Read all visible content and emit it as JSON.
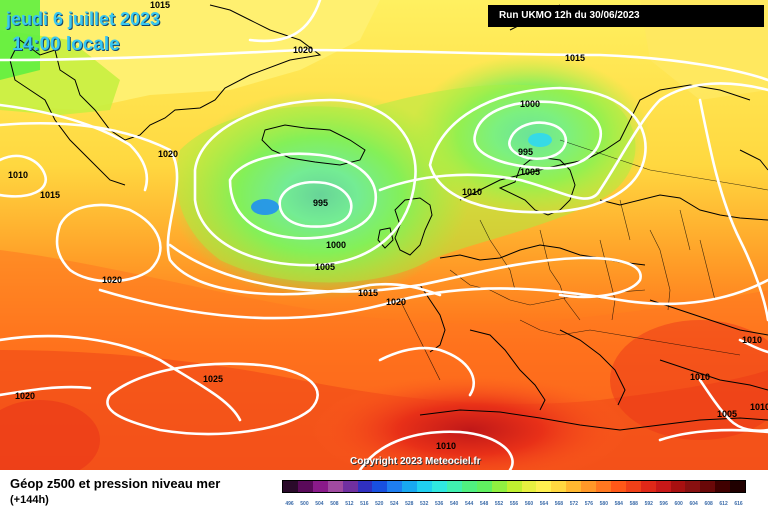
{
  "header": {
    "date_line": "jeudi 6 juillet 2023",
    "time_line": "14:00 locale",
    "run_info": "Run UKMO 12h du 30/06/2023",
    "copyright": "Copyright 2023 Meteociel.fr"
  },
  "legend": {
    "title": "Géop z500 et pression niveau mer",
    "subtitle": "(+144h)",
    "scale_values": [
      "496",
      "500",
      "504",
      "508",
      "512",
      "516",
      "520",
      "524",
      "528",
      "532",
      "536",
      "540",
      "544",
      "548",
      "552",
      "556",
      "560",
      "564",
      "568",
      "572",
      "576",
      "580",
      "584",
      "588",
      "592",
      "596",
      "600",
      "604",
      "608",
      "612",
      "616"
    ],
    "scale_colors": [
      "#2a0a2a",
      "#5a0a5a",
      "#8a1a8a",
      "#a04aa0",
      "#7030a0",
      "#3030c0",
      "#1850e0",
      "#1e7ef0",
      "#18a8f0",
      "#20d0f0",
      "#30e8e0",
      "#40f0b0",
      "#50f080",
      "#60f060",
      "#90f040",
      "#c0f030",
      "#e8f040",
      "#fff050",
      "#ffd840",
      "#ffb830",
      "#ff9828",
      "#ff7820",
      "#ff5818",
      "#f04018",
      "#e02818",
      "#c81818",
      "#a81010",
      "#881010",
      "#6a0808",
      "#400000",
      "#200000"
    ]
  },
  "map": {
    "isobar_labels": [
      "1015",
      "1020",
      "1020",
      "1015",
      "1010",
      "1015",
      "1000",
      "995",
      "1005",
      "995",
      "1000",
      "1005",
      "1010",
      "1015",
      "1020",
      "1020",
      "1025",
      "1020",
      "1010",
      "1010",
      "1010",
      "1005",
      "1010"
    ],
    "highlight_colors": {
      "low_core": "#30e8f0",
      "high_core": "#ff5818"
    }
  }
}
